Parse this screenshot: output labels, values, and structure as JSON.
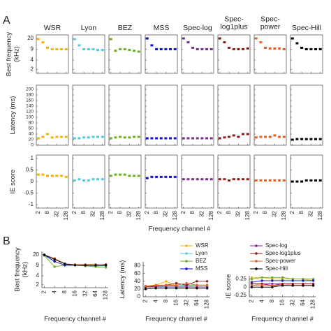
{
  "panel_labels": [
    "A",
    "B"
  ],
  "chart_data": [
    {
      "type": "small-multiples",
      "column_titles": [
        [
          "WSR"
        ],
        [
          "Lyon"
        ],
        [
          "BEZ"
        ],
        [
          "MSS"
        ],
        [
          "Spec-log"
        ],
        [
          "Spec-",
          "log1plus"
        ],
        [
          "Spec-",
          "power"
        ],
        [
          "Spec-Hill"
        ]
      ],
      "xlabel": "Frequency channel #",
      "xscale": "log",
      "xlim": [
        1.5,
        180
      ],
      "xticks": [
        2,
        8,
        32,
        128
      ],
      "rows": [
        {
          "ylabel": [
            "Best frequency",
            "(kHz)"
          ],
          "yscale": "log",
          "ylim": [
            1.5,
            26
          ],
          "yticks": [
            2,
            4,
            9,
            20
          ]
        },
        {
          "ylabel": [
            "Latency (ms)"
          ],
          "yscale": "linear",
          "ylim": [
            0,
            215
          ],
          "yticks": [
            0,
            20,
            40,
            60,
            80,
            100,
            120,
            140,
            160,
            180,
            200
          ]
        },
        {
          "ylabel": [
            "IE score"
          ],
          "yscale": "linear",
          "ylim": [
            -1.15,
            1.15
          ],
          "yticks": [
            -1,
            -0.5,
            0,
            0.5,
            1
          ]
        }
      ]
    },
    {
      "type": "line",
      "ylabel": [
        "Best frequency",
        "(kHz)"
      ],
      "xlabel": "Frequency channel #",
      "x": [
        2,
        4,
        8,
        16,
        32,
        64,
        128
      ],
      "xscale": "log",
      "xlim": [
        1.7,
        150
      ],
      "xticks": [
        2,
        4,
        8,
        16,
        32,
        64,
        128
      ],
      "yscale": "log",
      "ylim": [
        1.6,
        26
      ],
      "yticks": [
        2,
        4,
        9,
        20
      ],
      "legend": [],
      "series": [
        {
          "name": "WSR",
          "color": "#f0b400",
          "values": [
            19,
            15,
            10,
            9,
            9,
            9,
            9
          ]
        },
        {
          "name": "Lyon",
          "color": "#4ec9e0",
          "values": [
            19,
            12,
            9,
            9,
            9,
            8.5,
            8.5
          ]
        },
        {
          "name": "BEZ",
          "color": "#6ab023",
          "values": [
            19,
            8,
            9,
            9,
            8.5,
            8,
            7.5
          ]
        },
        {
          "name": "MSS",
          "color": "#1010c8",
          "values": [
            20,
            12,
            9,
            9,
            9,
            9,
            9
          ]
        },
        {
          "name": "Spec-log",
          "color": "#7b2d8e",
          "values": [
            20,
            15,
            10,
            9,
            9,
            9,
            9
          ]
        },
        {
          "name": "Spec-log1plus",
          "color": "#8b1a1a",
          "values": [
            20,
            15,
            10,
            9,
            9,
            9,
            9.5
          ]
        },
        {
          "name": "Spec-power",
          "color": "#e0602a",
          "values": [
            20,
            15,
            10,
            9.5,
            9.5,
            9.5,
            9
          ]
        },
        {
          "name": "Spec-Hill",
          "color": "#000000",
          "values": [
            20,
            14,
            10,
            9,
            9,
            9,
            9
          ]
        }
      ]
    },
    {
      "type": "line",
      "ylabel": [
        "Latency (ms)"
      ],
      "xlabel": "Frequency channel #",
      "x": [
        2,
        4,
        8,
        16,
        32,
        64,
        128
      ],
      "xscale": "log",
      "xlim": [
        1.7,
        150
      ],
      "xticks": [
        2,
        4,
        8,
        16,
        32,
        64,
        128
      ],
      "yscale": "linear",
      "ylim": [
        0,
        90
      ],
      "yticks": [
        0,
        20,
        40,
        60,
        80
      ],
      "legend": [
        0,
        1,
        2,
        3
      ],
      "series": [
        {
          "name": "WSR",
          "color": "#f0b400",
          "values": [
            25,
            30,
            40,
            28,
            30,
            30,
            30
          ]
        },
        {
          "name": "Lyon",
          "color": "#4ec9e0",
          "values": [
            25,
            25,
            28,
            28,
            30,
            30,
            30
          ]
        },
        {
          "name": "BEZ",
          "color": "#6ab023",
          "values": [
            25,
            28,
            30,
            28,
            28,
            30,
            30
          ]
        },
        {
          "name": "MSS",
          "color": "#1010c8",
          "values": [
            25,
            25,
            25,
            25,
            25,
            25,
            25
          ]
        },
        {
          "name": "Spec-log",
          "color": "#7b2d8e",
          "values": [
            25,
            25,
            25,
            25,
            25,
            25,
            25
          ]
        },
        {
          "name": "Spec-log1plus",
          "color": "#8b1a1a",
          "values": [
            25,
            28,
            30,
            35,
            30,
            40,
            40
          ]
        },
        {
          "name": "Spec-power",
          "color": "#e0602a",
          "values": [
            28,
            30,
            30,
            30,
            35,
            30,
            30
          ]
        },
        {
          "name": "Spec-Hill",
          "color": "#000000",
          "values": [
            20,
            22,
            22,
            22,
            22,
            22,
            22
          ]
        }
      ]
    },
    {
      "type": "line",
      "ylabel": [
        "IE score"
      ],
      "xlabel": "Frequency channel #",
      "x": [
        2,
        4,
        8,
        16,
        32,
        64,
        128
      ],
      "xscale": "log",
      "xlim": [
        1.7,
        150
      ],
      "xticks": [
        2,
        4,
        8,
        16,
        32,
        64,
        128
      ],
      "yscale": "linear",
      "ylim": [
        -0.3,
        0.35
      ],
      "yticks": [
        -0.25,
        0,
        0.25
      ],
      "legend": [
        4,
        5,
        6,
        7
      ],
      "series": [
        {
          "name": "WSR",
          "color": "#f0b400",
          "values": [
            0.3,
            0.3,
            0.25,
            0.25,
            0.25,
            0.25,
            0.2
          ]
        },
        {
          "name": "Lyon",
          "color": "#4ec9e0",
          "values": [
            0.05,
            0.1,
            0.05,
            0.05,
            0.1,
            0.1,
            0.1
          ]
        },
        {
          "name": "BEZ",
          "color": "#6ab023",
          "values": [
            0.25,
            0.3,
            0.3,
            0.3,
            0.25,
            0.25,
            0.25
          ]
        },
        {
          "name": "MSS",
          "color": "#1010c8",
          "values": [
            0.15,
            0.2,
            0.2,
            0.2,
            0.2,
            0.2,
            0.2
          ]
        },
        {
          "name": "Spec-log",
          "color": "#7b2d8e",
          "values": [
            0.1,
            0.1,
            0.1,
            0.1,
            0.1,
            0.1,
            0.1
          ]
        },
        {
          "name": "Spec-log1plus",
          "color": "#8b1a1a",
          "values": [
            0.1,
            0.1,
            0.05,
            0.1,
            0.1,
            0.1,
            0.1
          ]
        },
        {
          "name": "Spec-power",
          "color": "#e0602a",
          "values": [
            0.05,
            0.05,
            0.05,
            0.05,
            0.05,
            0.05,
            0.05
          ]
        },
        {
          "name": "Spec-Hill",
          "color": "#000000",
          "values": [
            0,
            0,
            0,
            0.05,
            0.05,
            0.05,
            0.05
          ]
        }
      ]
    }
  ]
}
